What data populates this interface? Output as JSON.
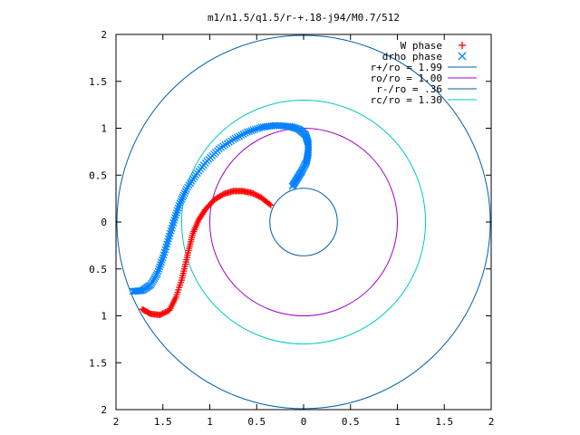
{
  "chart_data": {
    "type": "scatter",
    "title": "m1/n1.5/q1.5/r-+.18-j94/M0.7/512",
    "xlabel": "",
    "ylabel": "",
    "xlim": [
      -2,
      2
    ],
    "ylim": [
      -2,
      2
    ],
    "grid": false,
    "legend_position": "top-right",
    "x_tick_values": [
      -2,
      -1.5,
      -1,
      -0.5,
      0,
      0.5,
      1,
      1.5,
      2
    ],
    "x_tick_labels": [
      "2",
      "1.5",
      "1",
      "0.5",
      "0",
      "0.5",
      "1",
      "1.5",
      "2"
    ],
    "y_tick_values": [
      2,
      1.5,
      1,
      0.5,
      0,
      -0.5,
      -1,
      -1.5,
      -2
    ],
    "y_tick_labels": [
      "2",
      "1.5",
      "1",
      "0.5",
      "0",
      "0.5",
      "1",
      "1.5",
      "2"
    ],
    "series": [
      {
        "name": "W phase",
        "kind": "points",
        "marker": "plus",
        "color": "#ff0000",
        "points": [
          [
            -0.35,
            0.18
          ],
          [
            -0.45,
            0.26
          ],
          [
            -0.55,
            0.31
          ],
          [
            -0.65,
            0.33
          ],
          [
            -0.75,
            0.33
          ],
          [
            -0.85,
            0.3
          ],
          [
            -0.95,
            0.24
          ],
          [
            -1.05,
            0.13
          ],
          [
            -1.12,
            0.02
          ],
          [
            -1.18,
            -0.12
          ],
          [
            -1.22,
            -0.28
          ],
          [
            -1.26,
            -0.45
          ],
          [
            -1.3,
            -0.62
          ],
          [
            -1.36,
            -0.8
          ],
          [
            -1.43,
            -0.94
          ],
          [
            -1.53,
            -0.99
          ],
          [
            -1.63,
            -0.98
          ],
          [
            -1.72,
            -0.93
          ]
        ]
      },
      {
        "name": "drho phase",
        "kind": "points",
        "marker": "cross",
        "color": "#0080ff",
        "points": [
          [
            -0.12,
            0.38
          ],
          [
            -0.07,
            0.46
          ],
          [
            -0.02,
            0.54
          ],
          [
            0.03,
            0.64
          ],
          [
            0.05,
            0.74
          ],
          [
            0.05,
            0.84
          ],
          [
            0.02,
            0.93
          ],
          [
            -0.05,
            0.99
          ],
          [
            -0.15,
            1.02
          ],
          [
            -0.3,
            1.03
          ],
          [
            -0.45,
            1.01
          ],
          [
            -0.6,
            0.96
          ],
          [
            -0.75,
            0.88
          ],
          [
            -0.9,
            0.78
          ],
          [
            -1.03,
            0.65
          ],
          [
            -1.15,
            0.5
          ],
          [
            -1.25,
            0.35
          ],
          [
            -1.32,
            0.2
          ],
          [
            -1.38,
            0.02
          ],
          [
            -1.44,
            -0.18
          ],
          [
            -1.5,
            -0.38
          ],
          [
            -1.56,
            -0.55
          ],
          [
            -1.63,
            -0.67
          ],
          [
            -1.72,
            -0.73
          ],
          [
            -1.82,
            -0.74
          ]
        ]
      },
      {
        "name": "r+/ro = 1.99",
        "kind": "circle",
        "radius": 1.99,
        "color": "#0060ad"
      },
      {
        "name": "ro/ro = 1.00",
        "kind": "circle",
        "radius": 1.0,
        "color": "#a000c8"
      },
      {
        "name": "r-/ro = .36",
        "kind": "circle",
        "radius": 0.36,
        "color": "#0060ad"
      },
      {
        "name": "rc/ro = 1.30",
        "kind": "circle",
        "radius": 1.3,
        "color": "#00c8c8"
      }
    ]
  }
}
